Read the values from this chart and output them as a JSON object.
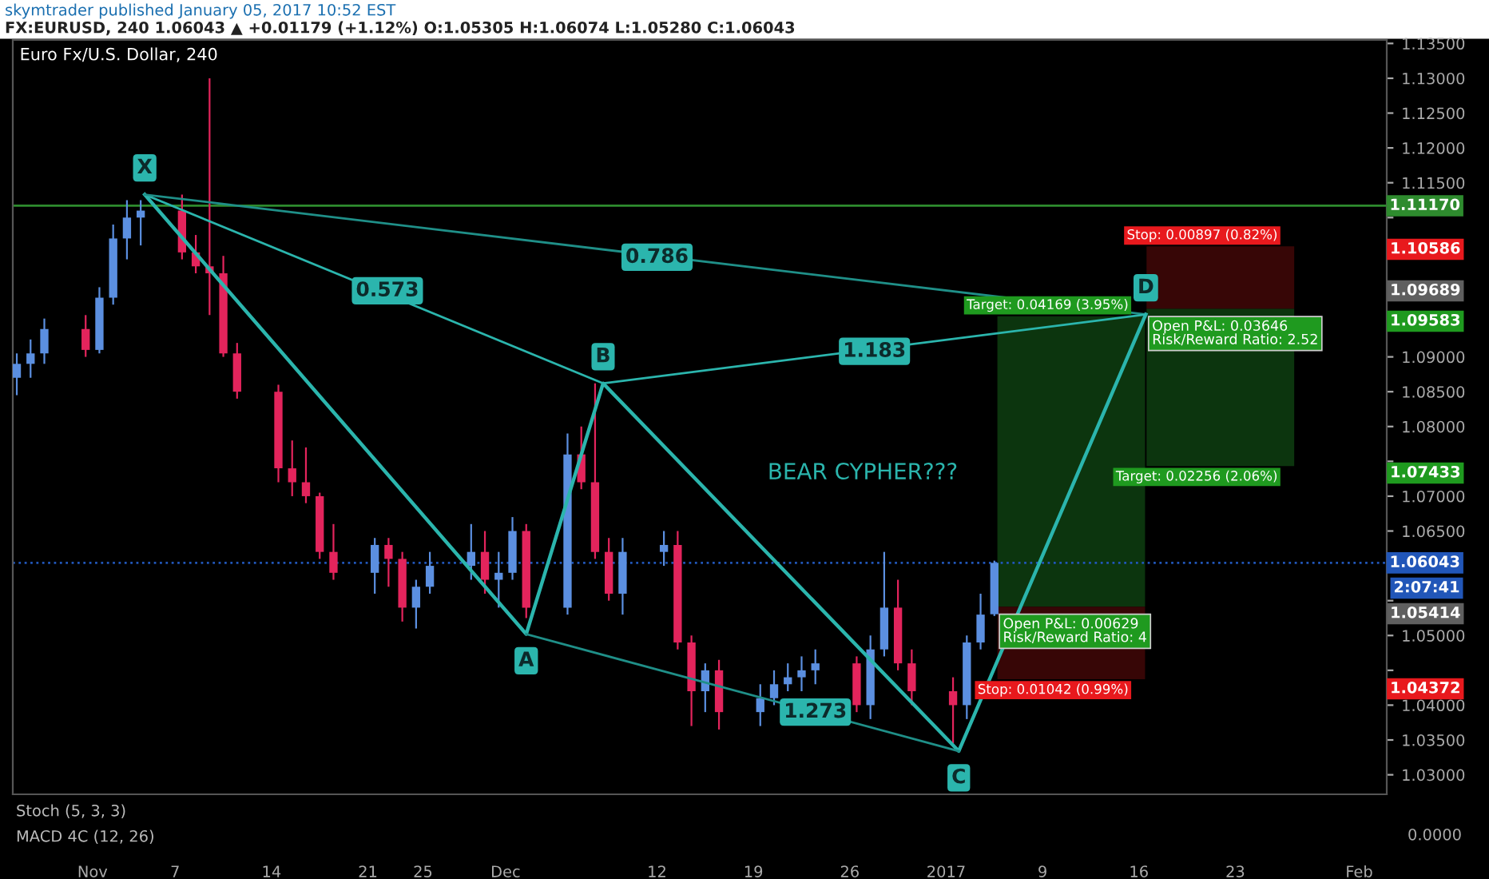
{
  "chart_data": {
    "type": "candlestick",
    "title": "Euro Fx/U.S. Dollar, 240",
    "subtitle": "FX:EURUSD, 240 1.06043 ▲ +0.01179 (+1.12%) O:1.05305 H:1.06074 L:1.05280 C:1.06043",
    "x": [
      "2016-10-26T12:00",
      "2016-10-27T12:00",
      "2016-10-28T12:00",
      "2016-10-31T12:00",
      "2016-11-01T12:00",
      "2016-11-02T12:00",
      "2016-11-03T12:00",
      "2016-11-04T12:00",
      "2016-11-07T12:00",
      "2016-11-08T12:00",
      "2016-11-09T12:00",
      "2016-11-10T12:00",
      "2016-11-11T12:00",
      "2016-11-14T12:00",
      "2016-11-15T12:00",
      "2016-11-16T12:00",
      "2016-11-17T12:00",
      "2016-11-18T12:00",
      "2016-11-21T12:00",
      "2016-11-22T12:00",
      "2016-11-23T12:00",
      "2016-11-24T12:00",
      "2016-11-25T12:00",
      "2016-11-28T12:00",
      "2016-11-29T12:00",
      "2016-11-30T12:00",
      "2016-12-01T12:00",
      "2016-12-02T12:00",
      "2016-12-05T12:00",
      "2016-12-06T12:00",
      "2016-12-07T12:00",
      "2016-12-08T12:00",
      "2016-12-09T12:00",
      "2016-12-12T12:00",
      "2016-12-13T12:00",
      "2016-12-14T12:00",
      "2016-12-15T12:00",
      "2016-12-16T12:00",
      "2016-12-19T12:00",
      "2016-12-20T12:00",
      "2016-12-21T12:00",
      "2016-12-22T12:00",
      "2016-12-23T12:00",
      "2016-12-26T12:00",
      "2016-12-27T12:00",
      "2016-12-28T12:00",
      "2016-12-29T12:00",
      "2016-12-30T12:00",
      "2017-01-02T12:00",
      "2017-01-03T12:00",
      "2017-01-04T12:00",
      "2017-01-05T12:00"
    ],
    "ohlc": [
      [
        1.087,
        1.0905,
        1.0845,
        1.089
      ],
      [
        1.089,
        1.0925,
        1.087,
        1.0905
      ],
      [
        1.0905,
        1.0955,
        1.089,
        1.094
      ],
      [
        1.094,
        1.096,
        1.09,
        1.091
      ],
      [
        1.091,
        1.1,
        1.0905,
        1.0985
      ],
      [
        1.0985,
        1.109,
        1.0975,
        1.107
      ],
      [
        1.107,
        1.1125,
        1.104,
        1.11
      ],
      [
        1.11,
        1.1125,
        1.106,
        1.111
      ],
      [
        1.111,
        1.1133,
        1.104,
        1.105
      ],
      [
        1.105,
        1.1075,
        1.102,
        1.103
      ],
      [
        1.103,
        1.13,
        1.096,
        1.102
      ],
      [
        1.102,
        1.1045,
        1.09,
        1.0905
      ],
      [
        1.0905,
        1.092,
        1.084,
        1.085
      ],
      [
        1.085,
        1.086,
        1.072,
        1.074
      ],
      [
        1.074,
        1.078,
        1.07,
        1.072
      ],
      [
        1.072,
        1.077,
        1.069,
        1.07
      ],
      [
        1.07,
        1.0705,
        1.061,
        1.062
      ],
      [
        1.062,
        1.066,
        1.058,
        1.059
      ],
      [
        1.059,
        1.064,
        1.056,
        1.063
      ],
      [
        1.063,
        1.064,
        1.057,
        1.061
      ],
      [
        1.061,
        1.062,
        1.052,
        1.054
      ],
      [
        1.054,
        1.058,
        1.051,
        1.057
      ],
      [
        1.057,
        1.062,
        1.056,
        1.06
      ],
      [
        1.06,
        1.066,
        1.058,
        1.062
      ],
      [
        1.062,
        1.065,
        1.056,
        1.058
      ],
      [
        1.058,
        1.062,
        1.054,
        1.059
      ],
      [
        1.059,
        1.067,
        1.058,
        1.065
      ],
      [
        1.065,
        1.066,
        1.0525,
        1.054
      ],
      [
        1.054,
        1.079,
        1.053,
        1.076
      ],
      [
        1.076,
        1.08,
        1.071,
        1.072
      ],
      [
        1.072,
        1.0862,
        1.061,
        1.062
      ],
      [
        1.062,
        1.064,
        1.055,
        1.056
      ],
      [
        1.056,
        1.064,
        1.053,
        1.062
      ],
      [
        1.062,
        1.065,
        1.06,
        1.063
      ],
      [
        1.063,
        1.065,
        1.048,
        1.049
      ],
      [
        1.049,
        1.05,
        1.037,
        1.042
      ],
      [
        1.042,
        1.046,
        1.039,
        1.045
      ],
      [
        1.045,
        1.0465,
        1.0365,
        1.039
      ],
      [
        1.039,
        1.043,
        1.037,
        1.041
      ],
      [
        1.041,
        1.045,
        1.04,
        1.043
      ],
      [
        1.043,
        1.046,
        1.042,
        1.044
      ],
      [
        1.044,
        1.047,
        1.042,
        1.045
      ],
      [
        1.045,
        1.048,
        1.043,
        1.046
      ],
      [
        1.046,
        1.047,
        1.039,
        1.04
      ],
      [
        1.04,
        1.05,
        1.038,
        1.048
      ],
      [
        1.048,
        1.062,
        1.047,
        1.054
      ],
      [
        1.054,
        1.058,
        1.045,
        1.046
      ],
      [
        1.046,
        1.048,
        1.04,
        1.042
      ],
      [
        1.042,
        1.044,
        1.0345,
        1.04
      ],
      [
        1.04,
        1.05,
        1.038,
        1.049
      ],
      [
        1.049,
        1.056,
        1.048,
        1.053
      ],
      [
        1.05305,
        1.06074,
        1.0528,
        1.06043
      ]
    ],
    "colors": [
      "#5b8fe0",
      "#5b8fe0",
      "#5b8fe0",
      "#e3245c",
      "#5b8fe0",
      "#5b8fe0",
      "#5b8fe0",
      "#5b8fe0",
      "#e3245c",
      "#e3245c",
      "#e3245c",
      "#e3245c",
      "#e3245c",
      "#e3245c",
      "#e3245c",
      "#e3245c",
      "#e3245c",
      "#e3245c",
      "#5b8fe0",
      "#e3245c",
      "#e3245c",
      "#5b8fe0",
      "#5b8fe0",
      "#5b8fe0",
      "#e3245c",
      "#5b8fe0",
      "#5b8fe0",
      "#e3245c",
      "#5b8fe0",
      "#e3245c",
      "#e3245c",
      "#e3245c",
      "#5b8fe0",
      "#5b8fe0",
      "#e3245c",
      "#e3245c",
      "#5b8fe0",
      "#e3245c",
      "#5b8fe0",
      "#5b8fe0",
      "#5b8fe0",
      "#5b8fe0",
      "#5b8fe0",
      "#e3245c",
      "#5b8fe0",
      "#5b8fe0",
      "#e3245c",
      "#e3245c",
      "#e3245c",
      "#5b8fe0",
      "#5b8fe0",
      "#5b8fe0"
    ],
    "series": [
      {
        "type": "line",
        "x": [
          "2016-11-04T19:00",
          "2016-12-02T12:00",
          "2016-12-08T02:00",
          "2017-01-02T22:00",
          "2017-01-16T12:00"
        ],
        "values": [
          1.1133,
          1.0502,
          1.0862,
          1.0334,
          1.0961
        ],
        "color": "#2bb5ad"
      },
      {
        "type": "line",
        "x": [
          "2016-11-04T19:00",
          "2016-12-08T02:00"
        ],
        "values": [
          1.1133,
          1.0862
        ],
        "color": "#2bb5ad"
      },
      {
        "type": "line",
        "x": [
          "2016-11-04T19:00",
          "2017-01-16T12:00"
        ],
        "values": [
          1.1133,
          1.0961
        ],
        "color": "#1f8f88"
      },
      {
        "type": "line",
        "x": [
          "2016-12-02T12:00",
          "2017-01-02T22:00"
        ],
        "values": [
          1.0502,
          1.0334
        ],
        "color": "#1f8f88"
      },
      {
        "type": "line",
        "x": [
          "2016-12-08T02:00",
          "2017-01-16T12:00"
        ],
        "values": [
          1.0862,
          1.0961
        ],
        "color": "#2bb5ad"
      },
      {
        "type": "bar",
        "x": [
          "2017-01-11T02:00"
        ],
        "base": [
          1.05414
        ],
        "values": [
          0.04169
        ],
        "color": "#0d3b10",
        "value_labels": [
          "Target: 0.04169 (3.95%)"
        ]
      },
      {
        "type": "bar",
        "x": [
          "2017-01-11T02:00"
        ],
        "base": [
          1.04372
        ],
        "values": [
          0.01042
        ],
        "color": "#3d0707",
        "value_labels": [
          "Stop: 0.01042 (0.99%)"
        ]
      },
      {
        "type": "bar",
        "x": [
          "2017-01-21T22:00"
        ],
        "base": [
          1.09689
        ],
        "values": [
          0.00897
        ],
        "color": "#3d0707",
        "value_labels": [
          "Stop: 0.00897 (0.82%)"
        ]
      },
      {
        "type": "bar",
        "x": [
          "2017-01-21T22:00"
        ],
        "base": [
          1.07433
        ],
        "values": [
          0.02256
        ],
        "color": "#0d3b10",
        "value_labels": [
          "Target: 0.02256 (2.06%)"
        ]
      }
    ],
    "xlim": [
      "2016-10-26T05:00",
      "2017-02-03T00:00"
    ],
    "ylim": [
      1.0272,
      1.1355
    ],
    "xticks": [
      {
        "value": "2016-11-01",
        "label": "Nov"
      },
      {
        "value": "2016-11-07",
        "label": "7"
      },
      {
        "value": "2016-11-14",
        "label": "14"
      },
      {
        "value": "2016-11-21",
        "label": "21"
      },
      {
        "value": "2016-11-25",
        "label": "25"
      },
      {
        "value": "2016-12-01",
        "label": "Dec"
      },
      {
        "value": "2016-12-12",
        "label": "12"
      },
      {
        "value": "2016-12-19",
        "label": "19"
      },
      {
        "value": "2016-12-26",
        "label": "26"
      },
      {
        "value": "2017-01-02",
        "label": "2017"
      },
      {
        "value": "2017-01-09",
        "label": "9"
      },
      {
        "value": "2017-01-16",
        "label": "16"
      },
      {
        "value": "2017-01-23",
        "label": "23"
      },
      {
        "value": "2017-02-01",
        "label": "Feb"
      }
    ],
    "yticks": [
      {
        "value": 1.03,
        "label": "1.03000"
      },
      {
        "value": 1.035,
        "label": "1.03500"
      },
      {
        "value": 1.04,
        "label": "1.04000"
      },
      {
        "value": 1.045,
        "label": null
      },
      {
        "value": 1.05,
        "label": "1.05000"
      },
      {
        "value": 1.055,
        "label": null
      },
      {
        "value": 1.06,
        "label": null
      },
      {
        "value": 1.065,
        "label": "1.06500"
      },
      {
        "value": 1.07,
        "label": "1.07000"
      },
      {
        "value": 1.075,
        "label": null
      },
      {
        "value": 1.08,
        "label": "1.08000"
      },
      {
        "value": 1.085,
        "label": "1.08500"
      },
      {
        "value": 1.09,
        "label": "1.09000"
      },
      {
        "value": 1.095,
        "label": null
      },
      {
        "value": 1.1,
        "label": null
      },
      {
        "value": 1.105,
        "label": null
      },
      {
        "value": 1.11,
        "label": null
      },
      {
        "value": 1.115,
        "label": "1.11500"
      },
      {
        "value": 1.12,
        "label": "1.12000"
      },
      {
        "value": 1.125,
        "label": "1.12500"
      },
      {
        "value": 1.13,
        "label": "1.13000"
      },
      {
        "value": 1.135,
        "label": "1.13500"
      }
    ],
    "ref_lines": [
      {
        "axis": "y",
        "value": 1.1117,
        "label": "1.11170",
        "color": "#2e8b2e",
        "line_style": "solid"
      },
      {
        "axis": "y",
        "value": 1.06043,
        "label": "1.06043",
        "color": "#2156b8",
        "line_style": "dotted"
      }
    ],
    "annotations": [
      "skymtrader published January 05, 2017 10:52 EST",
      {
        "text": "X",
        "x": "2016-11-04T19:00",
        "y": 1.1133
      },
      {
        "text": "A",
        "x": "2016-12-02T12:00",
        "y": 1.0502
      },
      {
        "text": "B",
        "x": "2016-12-08T02:00",
        "y": 1.0862
      },
      {
        "text": "C",
        "x": "2017-01-02T22:00",
        "y": 1.0334
      },
      {
        "text": "D",
        "x": "2017-01-16T12:00",
        "y": 1.0961
      },
      {
        "text": "0.786",
        "x": "2016-12-12T00:00",
        "y": 1.1043
      },
      {
        "text": "0.573",
        "x": "2016-11-22T10:00",
        "y": 1.0995
      },
      {
        "text": "1.183",
        "x": "2016-12-27T19:00",
        "y": 1.0908
      },
      {
        "text": "1.273",
        "x": "2016-12-23T12:00",
        "y": 1.039
      },
      {
        "text": "Open P&L: 0.00629\nRisk/Reward Ratio: 4",
        "x": "2017-01-11T02:00",
        "y": 1.05414
      },
      {
        "text": "Open P&L: 0.03646\nRisk/Reward Ratio: 2.52",
        "x": "2017-01-21T22:00",
        "y": 1.09689
      },
      "BEAR CYPHER???",
      "1.10586",
      "1.09689",
      "1.09583",
      "1.07433",
      "1.05414",
      "1.04372",
      "2:07:41",
      "Stoch (5, 3, 3)",
      "MACD 4C (12, 26)",
      "0.0000"
    ],
    "grid": false,
    "legend": false
  }
}
